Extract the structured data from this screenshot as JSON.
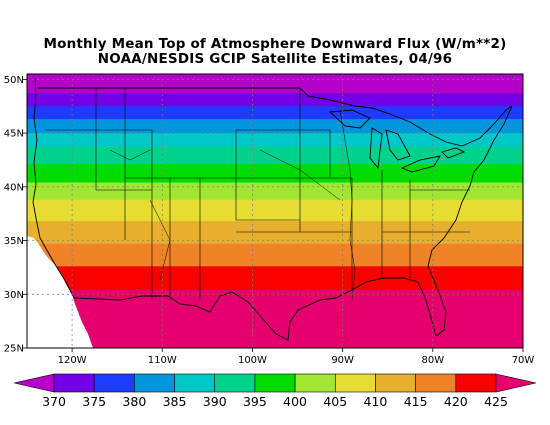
{
  "title_line1": "Monthly Mean Top of Atmosphere Downward Flux (W/m**2)",
  "title_line2": "NOAA/NESDIS GCIP Satellite Estimates, 04/96",
  "chart_data": {
    "type": "heatmap",
    "x_ticks": [
      {
        "lon": -120,
        "label": "120W"
      },
      {
        "lon": -110,
        "label": "110W"
      },
      {
        "lon": -100,
        "label": "100W"
      },
      {
        "lon": -90,
        "label": "90W"
      },
      {
        "lon": -80,
        "label": "80W"
      },
      {
        "lon": -70,
        "label": "70W"
      }
    ],
    "y_ticks": [
      {
        "lat": 50,
        "label": "50N"
      },
      {
        "lat": 45,
        "label": "45N"
      },
      {
        "lat": 40,
        "label": "40N"
      },
      {
        "lat": 35,
        "label": "35N"
      },
      {
        "lat": 30,
        "label": "30N"
      },
      {
        "lat": 25,
        "label": "25N"
      }
    ],
    "xlim": [
      -125,
      -70
    ],
    "ylim": [
      25,
      50.5
    ],
    "grid": true,
    "colorbar": {
      "levels": [
        370,
        375,
        380,
        385,
        390,
        395,
        400,
        405,
        410,
        415,
        420,
        425
      ],
      "colors": [
        "#b400c8",
        "#7300e6",
        "#1e3cff",
        "#0096dc",
        "#00c8c8",
        "#00d28c",
        "#00dc00",
        "#a0e632",
        "#e6dc32",
        "#e6af2d",
        "#f08228",
        "#fa0000",
        "#e6006e"
      ]
    },
    "bands": [
      {
        "lat_from": 48.7,
        "lat_to": 50.5,
        "value": 367
      },
      {
        "lat_from": 47.5,
        "lat_to": 48.7,
        "value": 372
      },
      {
        "lat_from": 46.3,
        "lat_to": 47.5,
        "value": 377
      },
      {
        "lat_from": 45.0,
        "lat_to": 46.3,
        "value": 382
      },
      {
        "lat_from": 43.7,
        "lat_to": 45.0,
        "value": 387
      },
      {
        "lat_from": 42.1,
        "lat_to": 43.7,
        "value": 392
      },
      {
        "lat_from": 40.4,
        "lat_to": 42.1,
        "value": 397
      },
      {
        "lat_from": 38.8,
        "lat_to": 40.4,
        "value": 402
      },
      {
        "lat_from": 36.8,
        "lat_to": 38.8,
        "value": 407
      },
      {
        "lat_from": 34.7,
        "lat_to": 36.8,
        "value": 412
      },
      {
        "lat_from": 32.6,
        "lat_to": 34.7,
        "value": 417
      },
      {
        "lat_from": 30.4,
        "lat_to": 32.6,
        "value": 422
      },
      {
        "lat_from": 25.0,
        "lat_to": 30.4,
        "value": 427
      }
    ]
  }
}
